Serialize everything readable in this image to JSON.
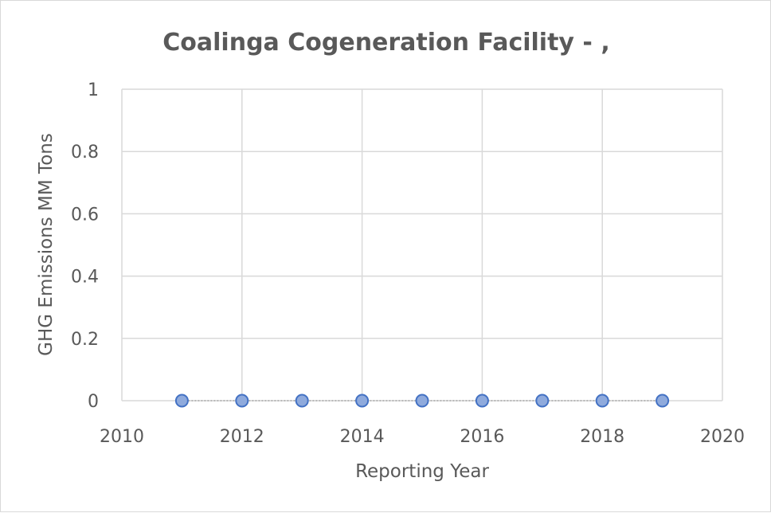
{
  "chart_data": {
    "type": "scatter",
    "title": "Coalinga Cogeneration Facility - ,",
    "xlabel": "Reporting Year",
    "ylabel": "GHG Emissions MM Tons",
    "xlim": [
      2010,
      2020
    ],
    "ylim": [
      0,
      1
    ],
    "xticks": [
      2010,
      2012,
      2014,
      2016,
      2018,
      2020
    ],
    "yticks": [
      0,
      0.2,
      0.4,
      0.6,
      0.8,
      1
    ],
    "ytick_labels": [
      "0",
      "0.2",
      "0.4",
      "0.6",
      "0.8",
      "1"
    ],
    "grid": true,
    "series": [
      {
        "name": "GHG Emissions",
        "x": [
          2011,
          2012,
          2013,
          2014,
          2015,
          2016,
          2017,
          2018,
          2019
        ],
        "y": [
          0,
          0,
          0,
          0,
          0,
          0,
          0,
          0,
          0
        ],
        "marker_fill": "#8faadc",
        "marker_stroke": "#4472c4",
        "line_color": "#a6a6a6"
      }
    ]
  }
}
